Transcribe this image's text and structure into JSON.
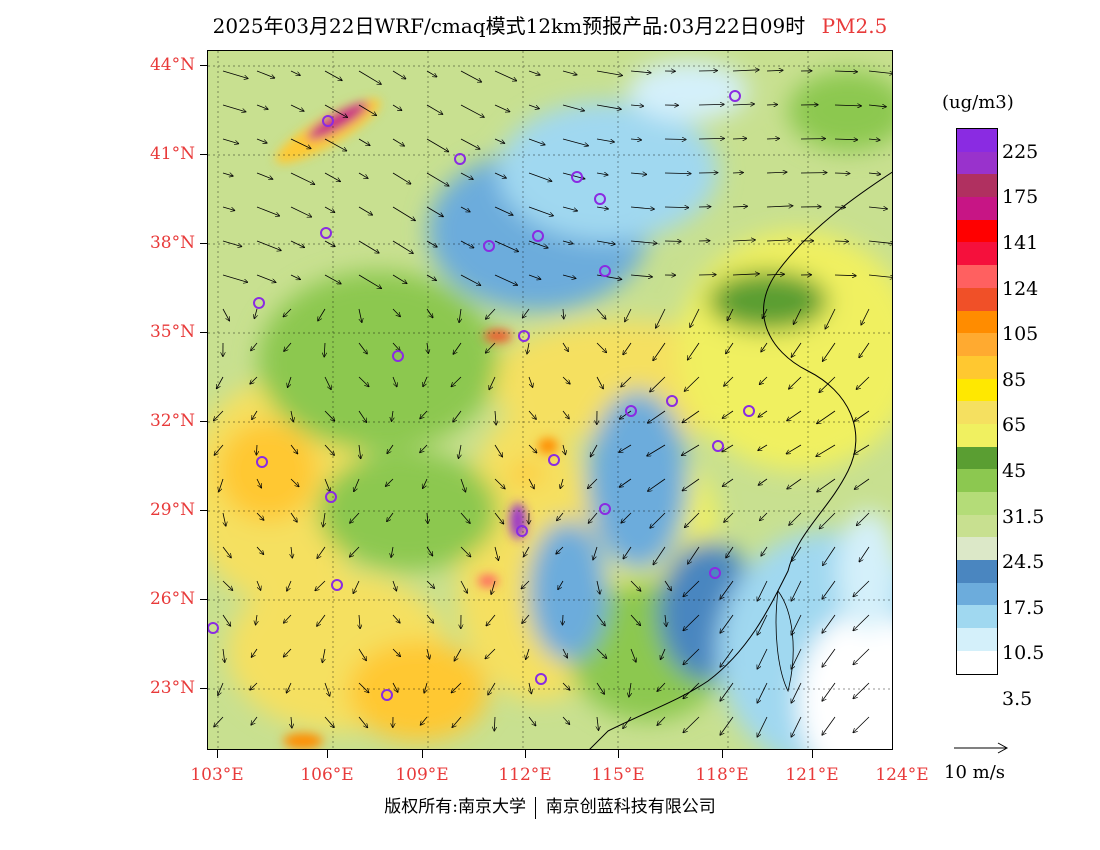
{
  "title": {
    "text": "2025年03月22日WRF/cmaq模式12km预报产品:03月22日09时",
    "pollutant": "PM2.5"
  },
  "map": {
    "lat_labels": [
      "44°N",
      "41°N",
      "38°N",
      "35°N",
      "32°N",
      "29°N",
      "26°N",
      "23°N"
    ],
    "lon_labels": [
      "103°E",
      "106°E",
      "109°E",
      "112°E",
      "115°E",
      "118°E",
      "121°E",
      "124°E"
    ],
    "lat_range": [
      21.0,
      44.5
    ],
    "lon_range": [
      102.5,
      124.0
    ]
  },
  "legend": {
    "unit": "(ug/m3)",
    "colors": [
      "#8a2be2",
      "#9932cc",
      "#b03060",
      "#c71585",
      "#ff0000",
      "#f5103c",
      "#ff6060",
      "#f05028",
      "#ff8c00",
      "#ffaa30",
      "#ffc830",
      "#ffe800",
      "#f5e060",
      "#f0f060",
      "#5a9e32",
      "#8cc850",
      "#b4dc78",
      "#c8e090",
      "#dce8c8",
      "#4a86c0",
      "#6cacdc",
      "#a0d8f0",
      "#d4f0fa",
      "#ffffff"
    ],
    "labels": [
      "225",
      "175",
      "141",
      "124",
      "105",
      "85",
      "65",
      "45",
      "31.5",
      "24.5",
      "17.5",
      "10.5",
      "3.5"
    ],
    "wind_ref": "10 m/s"
  },
  "copyright": {
    "left": "版权所有:南京大学",
    "right": "南京创蓝科技有限公司"
  }
}
